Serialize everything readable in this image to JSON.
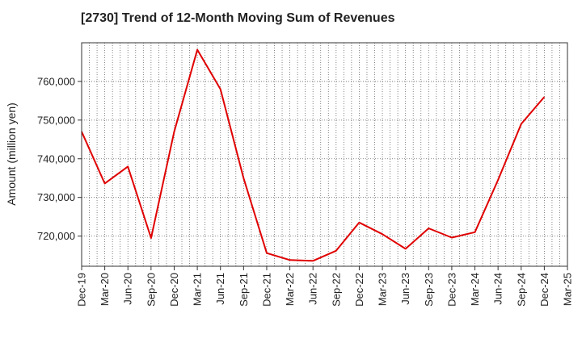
{
  "chart_data": {
    "type": "line",
    "title": "[2730]  Trend of 12-Month Moving Sum of Revenues",
    "xlabel": "",
    "ylabel": "Amount (million yen)",
    "categories": [
      "Dec-19",
      "Mar-20",
      "Jun-20",
      "Sep-20",
      "Dec-20",
      "Mar-21",
      "Jun-21",
      "Sep-21",
      "Dec-21",
      "Mar-22",
      "Jun-22",
      "Sep-22",
      "Dec-22",
      "Mar-23",
      "Jun-23",
      "Sep-23",
      "Dec-23",
      "Mar-24",
      "Jun-24",
      "Sep-24",
      "Dec-24",
      "Mar-25"
    ],
    "series": [
      {
        "values": [
          747000,
          733600,
          738000,
          719500,
          747000,
          768200,
          758000,
          735000,
          715600,
          713800,
          713600,
          716200,
          723500,
          720500,
          716700,
          722000,
          719600,
          721000,
          734500,
          749000,
          756000,
          null
        ],
        "color": "#e00000"
      }
    ],
    "yticks": [
      720000,
      730000,
      740000,
      750000,
      760000
    ],
    "ytick_labels": [
      "720,000",
      "730,000",
      "740,000",
      "750,000",
      "760,000"
    ],
    "ylim": [
      712200,
      770000
    ],
    "grid": true,
    "legend": "none"
  }
}
